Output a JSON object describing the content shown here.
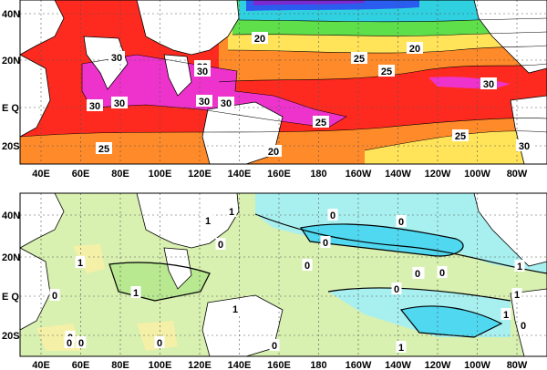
{
  "maps": [
    {
      "id": "top",
      "lat_labels": [
        "40N",
        "20N",
        "E Q",
        "20S"
      ],
      "lon_labels": [
        "40E",
        "60E",
        "80E",
        "100E",
        "120E",
        "140E",
        "160E",
        "180",
        "160W",
        "140W",
        "120W",
        "100W",
        "80W"
      ],
      "contour_labels": [
        "20",
        "20",
        "30",
        "30",
        "30",
        "25",
        "25",
        "30",
        "30",
        "30",
        "30",
        "30",
        "25",
        "25",
        "25",
        "20",
        "30"
      ],
      "colors": {
        "warm_core": "#ee33cc",
        "hot": "#ff2a1f",
        "orange": "#ff8a2a",
        "yellow": "#ffe45a",
        "green": "#5fe04a",
        "cyan": "#2fd0e0",
        "blue": "#2a5cf0",
        "purple": "#7a2ad0",
        "land": "#ffffff"
      }
    },
    {
      "id": "bottom",
      "lat_labels": [
        "40N",
        "20N",
        "E Q",
        "20S"
      ],
      "lon_labels": [
        "40E",
        "60E",
        "80E",
        "100E",
        "120E",
        "140E",
        "160E",
        "180",
        "160W",
        "140W",
        "120W",
        "100W",
        "80W"
      ],
      "contour_labels": [
        "1",
        "1",
        "0",
        "0",
        "0",
        "0",
        "0",
        "0",
        "0",
        "1",
        "0",
        "1",
        "1",
        "1",
        "0",
        "0",
        "0",
        "0",
        "0",
        "0",
        "1",
        "1",
        "0",
        "0",
        "1"
      ],
      "colors": {
        "pale_green": "#d8f0b0",
        "green": "#b8e890",
        "yellow": "#f5f0a8",
        "cyan": "#a8f0f0",
        "blue_cyan": "#50d8f0",
        "land": "#ffffff"
      }
    }
  ]
}
